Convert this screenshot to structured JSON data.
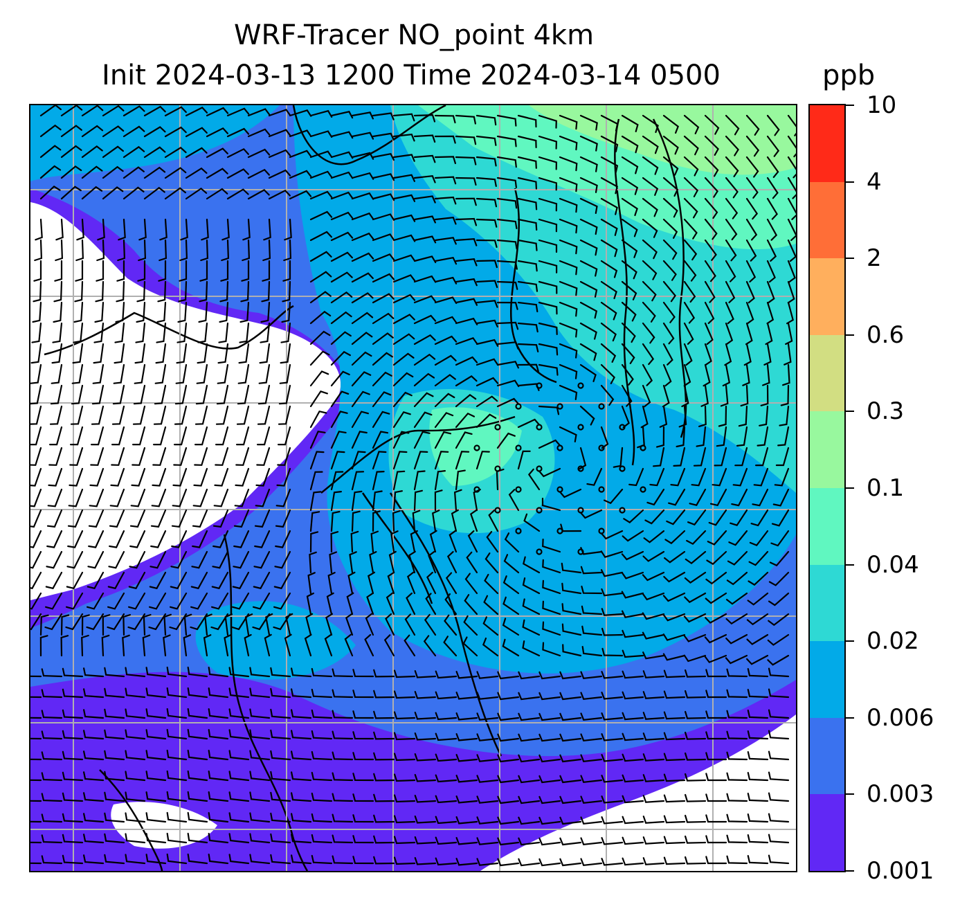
{
  "title": {
    "line1": "WRF-Tracer NO_point 4km",
    "line2": "Init 2024-03-13 1200 Time 2024-03-14 0500",
    "units": "ppb"
  },
  "map": {
    "type": "filled-contour-with-wind-barbs",
    "variable": "NO_point tracer concentration",
    "gridlines": true
  },
  "colorbar": {
    "levels": [
      {
        "label": "0.001",
        "color": "#6128f5"
      },
      {
        "label": "0.003",
        "color": "#3a72ef"
      },
      {
        "label": "0.006",
        "color": "#02aae8"
      },
      {
        "label": "0.02",
        "color": "#2ed9d4"
      },
      {
        "label": "0.04",
        "color": "#60f7c0"
      },
      {
        "label": "0.1",
        "color": "#98f89e"
      },
      {
        "label": "0.3",
        "color": "#d2de82"
      },
      {
        "label": "0.6",
        "color": "#ffaf5d"
      },
      {
        "label": "2",
        "color": "#ff6e37"
      },
      {
        "label": "4",
        "color": "#ff2a18"
      },
      {
        "label": "10",
        "color": null
      }
    ]
  }
}
